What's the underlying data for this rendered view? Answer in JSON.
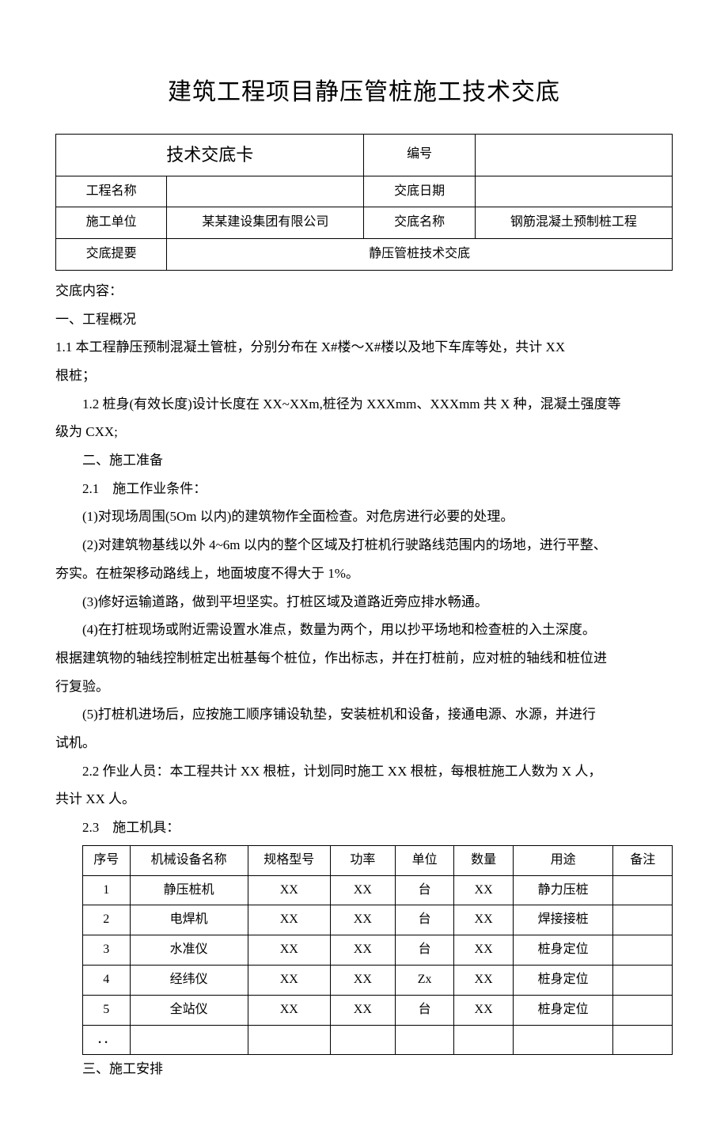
{
  "title": "建筑工程项目静压管桩施工技术交底",
  "header_table": {
    "card_title": "技术交底卡",
    "labels": {
      "number": "编号",
      "project_name": "工程名称",
      "date": "交底日期",
      "construction_unit": "施工单位",
      "disclosure_name": "交底名称",
      "summary": "交底提要"
    },
    "values": {
      "number": "",
      "project_name": "",
      "date": "",
      "construction_unit": "某某建设集团有限公司",
      "disclosure_name": "钢筋混凝土预制桩工程",
      "summary": "静压管桩技术交底"
    }
  },
  "content": {
    "content_label": "交底内容：",
    "sec1_title": "一、工程概况",
    "p1_1": "1.1 本工程静压预制混凝土管桩，分别分布在 X#楼～X#楼以及地下车库等处，共计 XX",
    "p1_1b": "根桩；",
    "p1_2": "1.2 桩身(有效长度)设计长度在 XX~XXm,桩径为 XXXmm、XXXmm 共 X 种，混凝土强度等",
    "p1_2b": "级为 CXX;",
    "sec2_title": "二、施工准备",
    "p2_1": "2.1　施工作业条件：",
    "p2_1_1": "(1)对现场周围(5Om 以内)的建筑物作全面检查。对危房进行必要的处理。",
    "p2_1_2a": "(2)对建筑物基线以外 4~6m 以内的整个区域及打桩机行驶路线范围内的场地，进行平整、",
    "p2_1_2b": "夯实。在桩架移动路线上，地面坡度不得大于 1%。",
    "p2_1_3": "(3)修好运输道路，做到平坦坚实。打桩区域及道路近旁应排水畅通。",
    "p2_1_4a": "(4)在打桩现场或附近需设置水准点，数量为两个，用以抄平场地和检查桩的入土深度。",
    "p2_1_4b": "根据建筑物的轴线控制桩定出桩基每个桩位，作出标志，并在打桩前，应对桩的轴线和桩位进",
    "p2_1_4c": "行复验。",
    "p2_1_5a": "(5)打桩机进场后，应按施工顺序铺设轨垫，安装桩机和设备，接通电源、水源，并进行",
    "p2_1_5b": "试机。",
    "p2_2a": "2.2  作业人员：本工程共计 XX 根桩，计划同时施工 XX 根桩，每根桩施工人数为 X 人，",
    "p2_2b": "共计 XX 人。",
    "p2_3": "2.3　施工机具：",
    "sec3_title": "三、施工安排"
  },
  "equipment_table": {
    "columns": [
      "序号",
      "机械设备名称",
      "规格型号",
      "功率",
      "单位",
      "数量",
      "用途",
      "备注"
    ],
    "rows": [
      [
        "1",
        "静压桩机",
        "XX",
        "XX",
        "台",
        "XX",
        "静力压桩",
        ""
      ],
      [
        "2",
        "电焊机",
        "XX",
        "XX",
        "台",
        "XX",
        "焊接接桩",
        ""
      ],
      [
        "3",
        "水准仪",
        "XX",
        "XX",
        "台",
        "XX",
        "桩身定位",
        ""
      ],
      [
        "4",
        "经纬仪",
        "XX",
        "XX",
        "Zx",
        "XX",
        "桩身定位",
        ""
      ],
      [
        "5",
        "全站仪",
        "XX",
        "XX",
        "台",
        "XX",
        "桩身定位",
        ""
      ],
      [
        "．．",
        "",
        "",
        "",
        "",
        "",
        "",
        ""
      ]
    ],
    "col_widths": [
      "8%",
      "20%",
      "14%",
      "11%",
      "10%",
      "10%",
      "17%",
      "10%"
    ]
  }
}
